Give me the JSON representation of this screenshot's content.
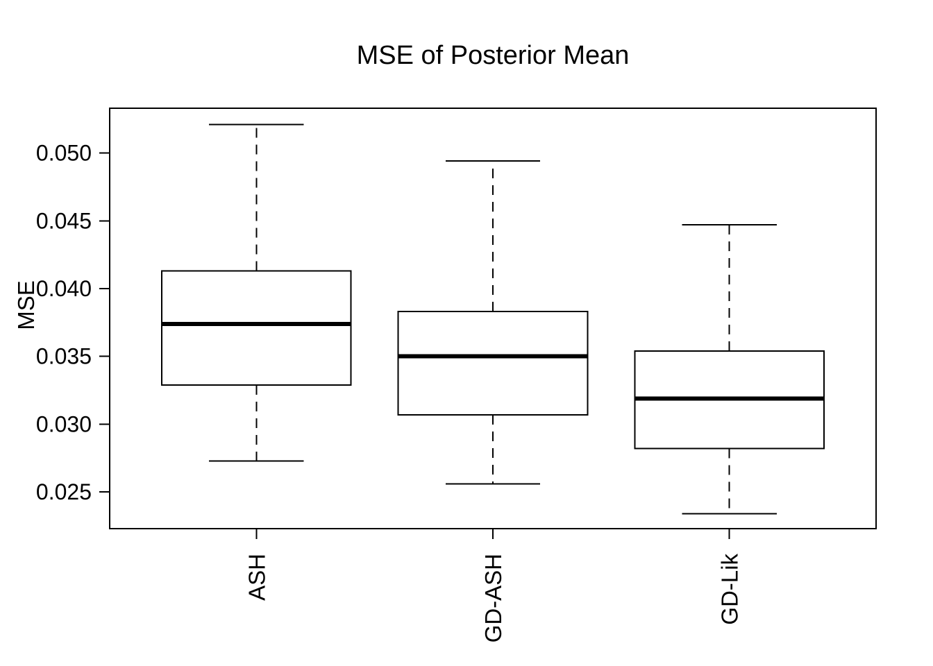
{
  "chart_data": {
    "type": "boxplot",
    "title": "MSE of Posterior Mean",
    "ylabel": "MSE",
    "xlabel": "",
    "categories": [
      "ASH",
      "GD-ASH",
      "GD-Lik"
    ],
    "series": [
      {
        "name": "ASH",
        "whisker_low": 0.0273,
        "q1": 0.0329,
        "median": 0.0374,
        "q3": 0.0413,
        "whisker_high": 0.0521
      },
      {
        "name": "GD-ASH",
        "whisker_low": 0.0256,
        "q1": 0.0307,
        "median": 0.035,
        "q3": 0.0383,
        "whisker_high": 0.0494
      },
      {
        "name": "GD-Lik",
        "whisker_low": 0.0234,
        "q1": 0.0282,
        "median": 0.0319,
        "q3": 0.0354,
        "whisker_high": 0.0447
      }
    ],
    "yticks": [
      0.025,
      0.03,
      0.035,
      0.04,
      0.045,
      0.05
    ],
    "ytick_labels": [
      "0.025",
      "0.030",
      "0.035",
      "0.040",
      "0.045",
      "0.050"
    ],
    "ylim": [
      0.0223,
      0.0533
    ],
    "grid": false,
    "legend": null,
    "colors": {
      "foreground": "#000000",
      "background": "#ffffff"
    }
  }
}
